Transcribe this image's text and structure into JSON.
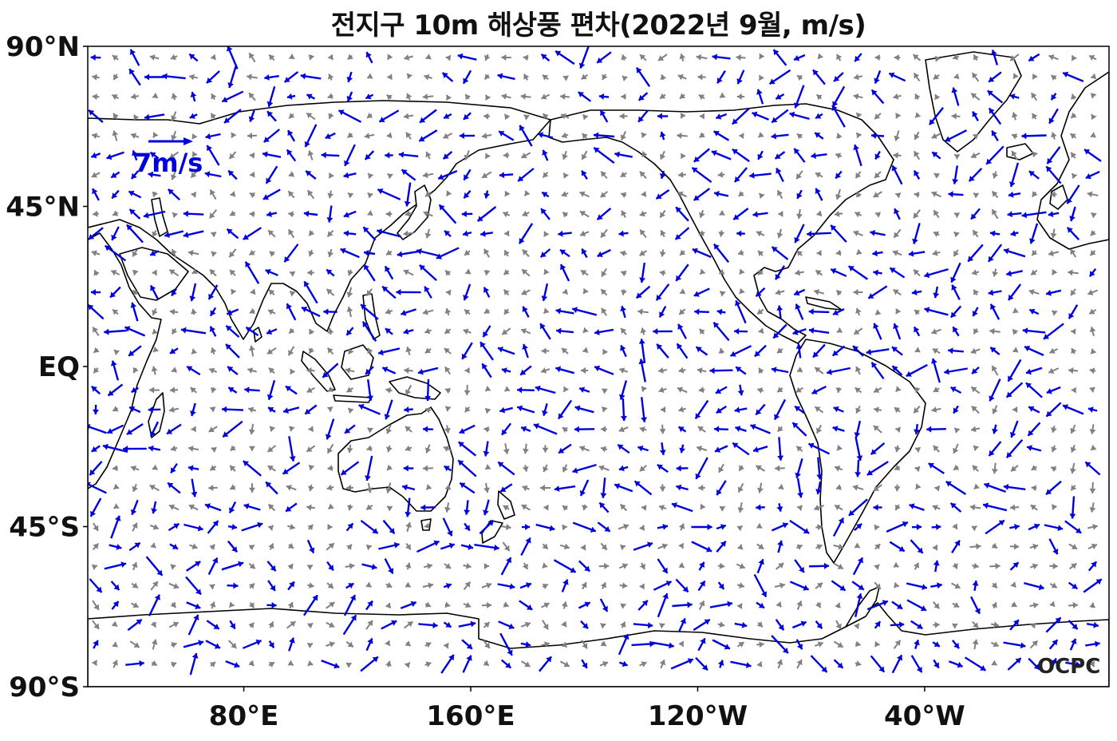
{
  "title": "전지구 10m 해상풍 편차(2022년 9월, m/s)",
  "y_axis": {
    "ticks": [
      {
        "label": "90°N",
        "lat": 90
      },
      {
        "label": "45°N",
        "lat": 45
      },
      {
        "label": "EQ",
        "lat": 0
      },
      {
        "label": "45°S",
        "lat": -45
      },
      {
        "label": "90°S",
        "lat": -90
      }
    ]
  },
  "x_axis": {
    "ticks": [
      {
        "label": "80°E",
        "lon": 80
      },
      {
        "label": "160°E",
        "lon": 160
      },
      {
        "label": "120°W",
        "lon": 240
      },
      {
        "label": "40°W",
        "lon": 320
      }
    ]
  },
  "map_extent": {
    "lon_min": 25,
    "lon_max": 385,
    "lat_min": -90,
    "lat_max": 90,
    "projection": "plate-carree",
    "central": "pacific"
  },
  "reference_vector": {
    "label": "7m/s",
    "speed_ms": 7,
    "color": "#0000dd"
  },
  "colors": {
    "strong_anomaly": "#0000dd",
    "weak_anomaly": "#808080",
    "coastline": "#000000"
  },
  "logo": {
    "text": "OCPC"
  }
}
